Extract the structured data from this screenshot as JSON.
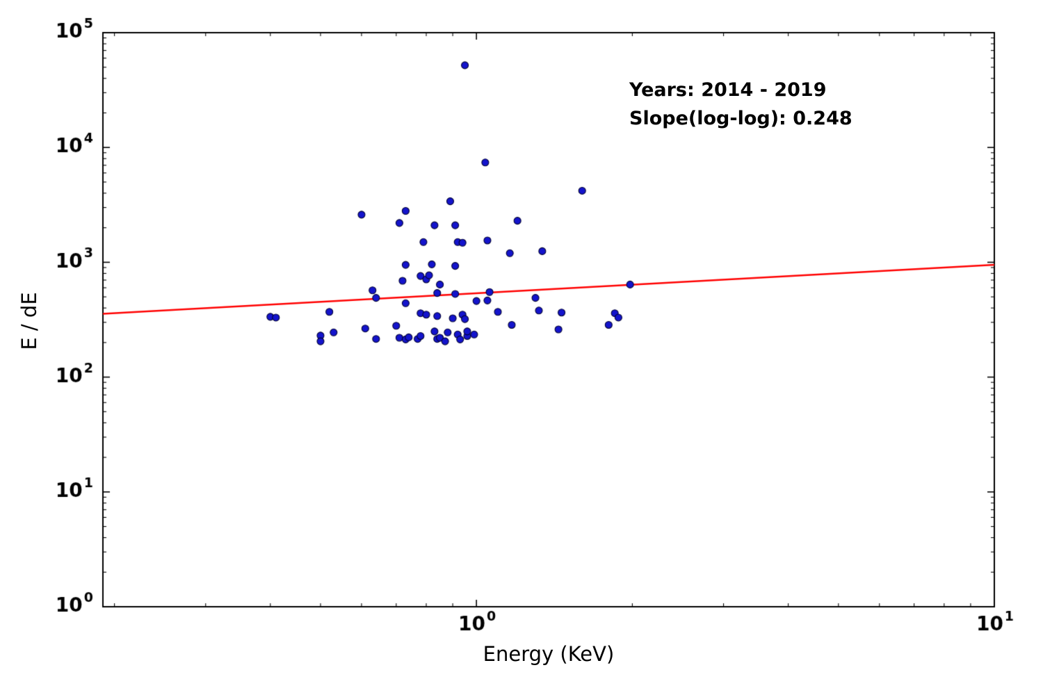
{
  "chart_data": {
    "type": "scatter",
    "title": "",
    "xlabel": "Energy (KeV)",
    "ylabel": "E / dE",
    "x_scale": "log",
    "y_scale": "log",
    "xlim": [
      0.19,
      10
    ],
    "ylim": [
      1,
      100000
    ],
    "x_tick_exponents": [
      0,
      1
    ],
    "y_tick_exponents": [
      0,
      1,
      2,
      3,
      4,
      5
    ],
    "x_tick_labels": [
      "10^0",
      "10^1"
    ],
    "y_tick_labels": [
      "10^0",
      "10^1",
      "10^2",
      "10^3",
      "10^4",
      "10^5"
    ],
    "grid": false,
    "legend": null,
    "marker_color": "#1414cc",
    "marker_edge_color": "#000033",
    "marker_radius_px": 5,
    "annotation": {
      "line1": "Years: 2014 - 2019",
      "line2": "Slope(log-log): 0.248"
    },
    "fit_line": {
      "color": "#ff0000",
      "slope_loglog": 0.248,
      "coeff_at_1kev": 537,
      "x_start": 0.19,
      "x_end": 10
    },
    "points": [
      [
        0.95,
        52000
      ],
      [
        1.04,
        7400
      ],
      [
        1.6,
        4200
      ],
      [
        0.89,
        3400
      ],
      [
        0.6,
        2600
      ],
      [
        0.73,
        2800
      ],
      [
        0.71,
        2200
      ],
      [
        0.83,
        2100
      ],
      [
        0.91,
        2100
      ],
      [
        1.2,
        2300
      ],
      [
        0.92,
        1500
      ],
      [
        1.05,
        1550
      ],
      [
        0.79,
        1500
      ],
      [
        0.94,
        1480
      ],
      [
        1.16,
        1200
      ],
      [
        1.34,
        1250
      ],
      [
        0.73,
        950
      ],
      [
        0.82,
        960
      ],
      [
        0.91,
        930
      ],
      [
        0.78,
        760
      ],
      [
        0.8,
        710
      ],
      [
        0.81,
        770
      ],
      [
        0.72,
        690
      ],
      [
        0.85,
        640
      ],
      [
        0.63,
        570
      ],
      [
        0.84,
        540
      ],
      [
        1.98,
        640
      ],
      [
        0.64,
        490
      ],
      [
        0.91,
        530
      ],
      [
        1.06,
        550
      ],
      [
        1.0,
        460
      ],
      [
        1.05,
        465
      ],
      [
        1.3,
        490
      ],
      [
        0.73,
        440
      ],
      [
        0.52,
        370
      ],
      [
        0.4,
        335
      ],
      [
        0.41,
        330
      ],
      [
        1.32,
        380
      ],
      [
        1.1,
        370
      ],
      [
        0.78,
        360
      ],
      [
        0.8,
        350
      ],
      [
        0.84,
        340
      ],
      [
        0.9,
        325
      ],
      [
        0.94,
        350
      ],
      [
        0.95,
        320
      ],
      [
        1.46,
        365
      ],
      [
        1.85,
        360
      ],
      [
        1.88,
        330
      ],
      [
        0.7,
        280
      ],
      [
        0.61,
        265
      ],
      [
        1.17,
        285
      ],
      [
        1.44,
        260
      ],
      [
        1.8,
        285
      ],
      [
        0.53,
        245
      ],
      [
        0.5,
        230
      ],
      [
        0.5,
        205
      ],
      [
        0.64,
        215
      ],
      [
        0.71,
        220
      ],
      [
        0.73,
        213
      ],
      [
        0.74,
        222
      ],
      [
        0.77,
        215
      ],
      [
        0.78,
        228
      ],
      [
        0.83,
        250
      ],
      [
        0.84,
        215
      ],
      [
        0.85,
        220
      ],
      [
        0.88,
        245
      ],
      [
        0.92,
        235
      ],
      [
        0.93,
        213
      ],
      [
        0.96,
        228
      ],
      [
        0.96,
        250
      ],
      [
        0.99,
        235
      ],
      [
        0.87,
        205
      ]
    ]
  }
}
